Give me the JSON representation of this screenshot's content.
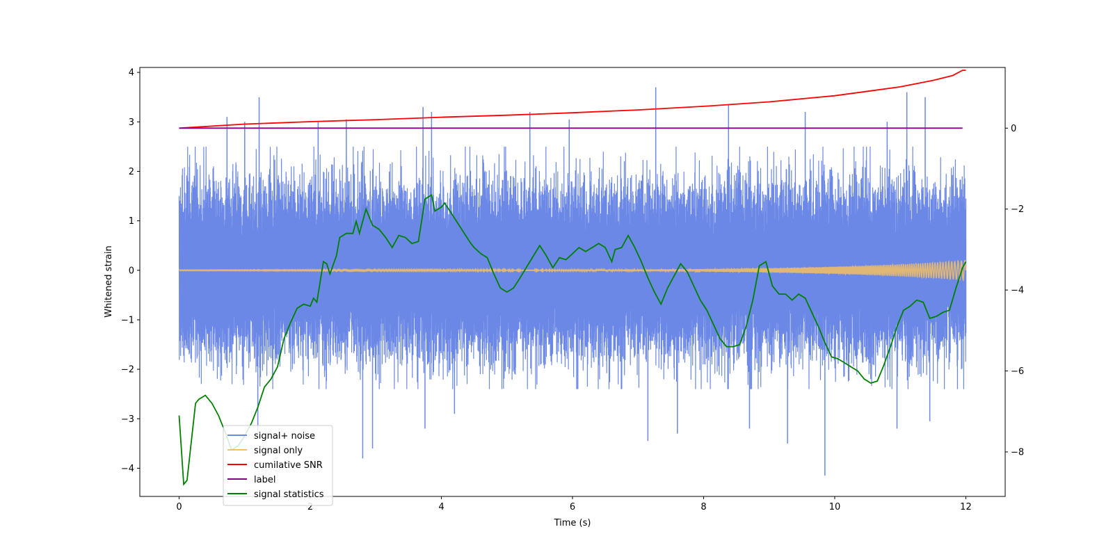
{
  "chart_data": {
    "type": "line",
    "title": "",
    "xlabel": "Time (s)",
    "ylabel": "Whitened strain",
    "y2label": "",
    "xlim": [
      -0.6,
      12.6
    ],
    "ylim": [
      -4.57,
      4.1
    ],
    "y2lim": [
      -9.1,
      1.5
    ],
    "x_ticks": [
      0,
      2,
      4,
      6,
      8,
      10,
      12
    ],
    "y_ticks": [
      -4,
      -3,
      -2,
      -1,
      0,
      1,
      2,
      3,
      4
    ],
    "y2_ticks": [
      -8,
      -6,
      -4,
      -2,
      0
    ],
    "x_tick_labels": [
      "0",
      "2",
      "4",
      "6",
      "8",
      "10",
      "12"
    ],
    "y_tick_labels": [
      "−4",
      "−3",
      "−2",
      "−1",
      "0",
      "1",
      "2",
      "3",
      "4"
    ],
    "y2_tick_labels": [
      "−8",
      "−6",
      "−4",
      "−2",
      "0"
    ],
    "grid": false,
    "legend_position": "lower-left",
    "series": [
      {
        "name": "signal+ noise",
        "axis": "left",
        "color": "#6b88e6",
        "style": "noise band",
        "x_range": [
          0,
          12
        ],
        "band_typical": [
          -1.5,
          1.5
        ],
        "band_envelope": [
          -2.3,
          2.4
        ],
        "spikes": [
          {
            "x": 1.22,
            "y": 3.5
          },
          {
            "x": 0.73,
            "y": 3.1
          },
          {
            "x": 1.0,
            "y": 3.0
          },
          {
            "x": 2.12,
            "y": 3.0
          },
          {
            "x": 2.55,
            "y": 3.05
          },
          {
            "x": 3.72,
            "y": 3.3
          },
          {
            "x": 3.85,
            "y": 3.2
          },
          {
            "x": 5.35,
            "y": 3.2
          },
          {
            "x": 5.95,
            "y": 3.05
          },
          {
            "x": 7.27,
            "y": 3.7
          },
          {
            "x": 8.38,
            "y": 3.35
          },
          {
            "x": 9.55,
            "y": 3.2
          },
          {
            "x": 11.1,
            "y": 3.6
          },
          {
            "x": 11.38,
            "y": 3.5
          },
          {
            "x": 10.8,
            "y": 3.0
          },
          {
            "x": 2.8,
            "y": -3.8
          },
          {
            "x": 2.95,
            "y": -3.6
          },
          {
            "x": 3.75,
            "y": -3.2
          },
          {
            "x": 7.15,
            "y": -3.45
          },
          {
            "x": 7.6,
            "y": -3.3
          },
          {
            "x": 8.7,
            "y": -3.2
          },
          {
            "x": 9.28,
            "y": -3.5
          },
          {
            "x": 9.85,
            "y": -4.15
          },
          {
            "x": 10.95,
            "y": -3.2
          },
          {
            "x": 11.45,
            "y": -3.05
          },
          {
            "x": 1.2,
            "y": -3.3
          },
          {
            "x": 4.2,
            "y": -2.9
          }
        ]
      },
      {
        "name": "signal only",
        "axis": "left",
        "color": "#f5c060",
        "style": "chirp",
        "x_range": [
          0,
          12
        ],
        "amplitude_start": 0.01,
        "amplitude_end": 0.2
      },
      {
        "name": "cumilative SNR",
        "axis": "right",
        "color": "#ff0000",
        "x": [
          0,
          1,
          2,
          3,
          4,
          5,
          6,
          7,
          8,
          9,
          10,
          10.5,
          11,
          11.5,
          11.8,
          11.95,
          12
        ],
        "values": [
          0,
          0.1,
          0.16,
          0.21,
          0.27,
          0.32,
          0.38,
          0.45,
          0.54,
          0.65,
          0.8,
          0.91,
          1.02,
          1.18,
          1.3,
          1.43,
          1.43
        ]
      },
      {
        "name": "label",
        "axis": "right",
        "color": "#800080",
        "x": [
          0,
          11.95
        ],
        "values": [
          0,
          0
        ]
      },
      {
        "name": "signal statistics",
        "axis": "right",
        "color": "#008000",
        "x": [
          0,
          0.07,
          0.12,
          0.25,
          0.3,
          0.4,
          0.5,
          0.6,
          0.7,
          0.8,
          0.9,
          1.0,
          1.1,
          1.2,
          1.3,
          1.4,
          1.5,
          1.6,
          1.7,
          1.8,
          1.9,
          2.0,
          2.05,
          2.1,
          2.2,
          2.25,
          2.3,
          2.4,
          2.45,
          2.55,
          2.65,
          2.7,
          2.75,
          2.85,
          2.95,
          3.05,
          3.15,
          3.25,
          3.35,
          3.45,
          3.55,
          3.65,
          3.75,
          3.85,
          3.9,
          4.0,
          4.05,
          4.15,
          4.25,
          4.35,
          4.45,
          4.5,
          4.6,
          4.7,
          4.8,
          4.9,
          5.0,
          5.1,
          5.2,
          5.35,
          5.5,
          5.6,
          5.7,
          5.8,
          5.9,
          6.0,
          6.1,
          6.2,
          6.3,
          6.4,
          6.5,
          6.6,
          6.65,
          6.75,
          6.85,
          6.95,
          7.05,
          7.15,
          7.25,
          7.35,
          7.45,
          7.55,
          7.65,
          7.75,
          7.85,
          7.95,
          8.05,
          8.15,
          8.25,
          8.35,
          8.45,
          8.55,
          8.65,
          8.75,
          8.85,
          8.95,
          9.05,
          9.15,
          9.25,
          9.35,
          9.45,
          9.55,
          9.65,
          9.75,
          9.85,
          9.95,
          10.05,
          10.15,
          10.25,
          10.35,
          10.45,
          10.55,
          10.65,
          10.75,
          10.85,
          10.95,
          11.05,
          11.15,
          11.25,
          11.35,
          11.45,
          11.55,
          11.65,
          11.75,
          11.85,
          11.95,
          12.0
        ],
        "values": [
          -7.1,
          -8.8,
          -8.7,
          -6.8,
          -6.7,
          -6.6,
          -6.8,
          -7.1,
          -7.5,
          -7.95,
          -7.85,
          -7.6,
          -7.3,
          -6.9,
          -6.4,
          -6.2,
          -5.9,
          -5.2,
          -4.8,
          -4.45,
          -4.35,
          -4.4,
          -4.2,
          -4.3,
          -3.3,
          -3.35,
          -3.6,
          -3.15,
          -2.7,
          -2.6,
          -2.6,
          -2.3,
          -2.6,
          -2.0,
          -2.4,
          -2.5,
          -2.7,
          -2.95,
          -2.65,
          -2.7,
          -2.85,
          -2.8,
          -1.75,
          -1.65,
          -2.05,
          -1.95,
          -1.85,
          -2.1,
          -2.35,
          -2.6,
          -2.85,
          -2.95,
          -3.1,
          -3.2,
          -3.6,
          -3.95,
          -4.05,
          -3.95,
          -3.7,
          -3.3,
          -2.9,
          -3.15,
          -3.45,
          -3.2,
          -3.25,
          -3.1,
          -2.95,
          -3.05,
          -2.95,
          -2.85,
          -2.95,
          -3.3,
          -3.0,
          -2.95,
          -2.65,
          -2.95,
          -3.3,
          -3.7,
          -4.05,
          -4.35,
          -3.95,
          -3.65,
          -3.35,
          -3.55,
          -3.9,
          -4.25,
          -4.5,
          -4.85,
          -5.2,
          -5.4,
          -5.4,
          -5.35,
          -4.9,
          -4.25,
          -3.4,
          -3.3,
          -3.9,
          -4.1,
          -4.1,
          -4.25,
          -4.1,
          -4.2,
          -4.55,
          -4.9,
          -5.3,
          -5.65,
          -5.7,
          -5.8,
          -5.9,
          -6.0,
          -6.2,
          -6.3,
          -6.25,
          -5.85,
          -5.4,
          -4.9,
          -4.5,
          -4.4,
          -4.25,
          -4.3,
          -4.7,
          -4.65,
          -4.55,
          -4.5,
          -3.95,
          -3.45,
          -3.3
        ]
      }
    ]
  }
}
